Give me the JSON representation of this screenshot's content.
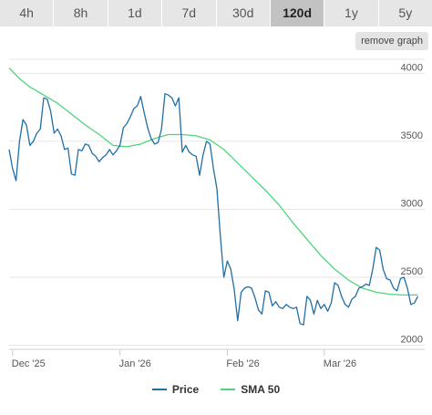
{
  "tabs": [
    {
      "label": "4h",
      "active": false
    },
    {
      "label": "8h",
      "active": false
    },
    {
      "label": "1d",
      "active": false
    },
    {
      "label": "7d",
      "active": false
    },
    {
      "label": "30d",
      "active": false
    },
    {
      "label": "120d",
      "active": true
    },
    {
      "label": "1y",
      "active": false
    },
    {
      "label": "5y",
      "active": false
    }
  ],
  "remove_graph_label": "remove graph",
  "legend": [
    {
      "name": "Price",
      "color": "#1f6fa6"
    },
    {
      "name": "SMA 50",
      "color": "#4cd67a"
    }
  ],
  "chart_data": {
    "type": "line",
    "x_tick_labels": [
      "Dec '25",
      "Jan '26",
      "Feb '26",
      "Mar '26"
    ],
    "x_tick_positions": [
      1,
      32,
      63,
      91
    ],
    "y_ticks": [
      2000,
      2500,
      3000,
      3500,
      4000
    ],
    "ylim": [
      1950,
      4150
    ],
    "xlim": [
      0,
      120
    ],
    "grid": "horizontal",
    "legend_position": "bottom-center",
    "series": [
      {
        "name": "Price",
        "color": "#1f6fa6",
        "points": [
          [
            0,
            3440
          ],
          [
            1,
            3300
          ],
          [
            2,
            3210
          ],
          [
            3,
            3500
          ],
          [
            4,
            3660
          ],
          [
            5,
            3620
          ],
          [
            6,
            3470
          ],
          [
            7,
            3500
          ],
          [
            8,
            3560
          ],
          [
            9,
            3590
          ],
          [
            10,
            3820
          ],
          [
            11,
            3810
          ],
          [
            12,
            3720
          ],
          [
            13,
            3560
          ],
          [
            14,
            3590
          ],
          [
            15,
            3540
          ],
          [
            16,
            3440
          ],
          [
            17,
            3450
          ],
          [
            18,
            3260
          ],
          [
            19,
            3250
          ],
          [
            20,
            3440
          ],
          [
            21,
            3430
          ],
          [
            22,
            3480
          ],
          [
            23,
            3470
          ],
          [
            24,
            3410
          ],
          [
            25,
            3390
          ],
          [
            26,
            3350
          ],
          [
            27,
            3380
          ],
          [
            28,
            3400
          ],
          [
            29,
            3440
          ],
          [
            30,
            3400
          ],
          [
            31,
            3430
          ],
          [
            32,
            3470
          ],
          [
            33,
            3600
          ],
          [
            34,
            3630
          ],
          [
            35,
            3680
          ],
          [
            36,
            3740
          ],
          [
            37,
            3760
          ],
          [
            38,
            3830
          ],
          [
            39,
            3710
          ],
          [
            40,
            3600
          ],
          [
            41,
            3520
          ],
          [
            42,
            3480
          ],
          [
            43,
            3490
          ],
          [
            44,
            3590
          ],
          [
            45,
            3850
          ],
          [
            46,
            3840
          ],
          [
            47,
            3820
          ],
          [
            48,
            3760
          ],
          [
            49,
            3820
          ],
          [
            50,
            3420
          ],
          [
            51,
            3470
          ],
          [
            52,
            3420
          ],
          [
            53,
            3400
          ],
          [
            54,
            3390
          ],
          [
            55,
            3250
          ],
          [
            56,
            3400
          ],
          [
            57,
            3500
          ],
          [
            58,
            3480
          ],
          [
            59,
            3300
          ],
          [
            60,
            3150
          ],
          [
            61,
            2800
          ],
          [
            62,
            2500
          ],
          [
            63,
            2620
          ],
          [
            64,
            2560
          ],
          [
            65,
            2410
          ],
          [
            66,
            2180
          ],
          [
            67,
            2390
          ],
          [
            68,
            2420
          ],
          [
            69,
            2430
          ],
          [
            70,
            2420
          ],
          [
            71,
            2350
          ],
          [
            72,
            2260
          ],
          [
            73,
            2230
          ],
          [
            74,
            2400
          ],
          [
            75,
            2390
          ],
          [
            76,
            2290
          ],
          [
            77,
            2320
          ],
          [
            78,
            2280
          ],
          [
            79,
            2270
          ],
          [
            80,
            2300
          ],
          [
            81,
            2280
          ],
          [
            82,
            2270
          ],
          [
            83,
            2280
          ],
          [
            84,
            2160
          ],
          [
            85,
            2150
          ],
          [
            86,
            2360
          ],
          [
            87,
            2330
          ],
          [
            88,
            2230
          ],
          [
            89,
            2330
          ],
          [
            90,
            2270
          ],
          [
            91,
            2300
          ],
          [
            92,
            2250
          ],
          [
            93,
            2310
          ],
          [
            94,
            2460
          ],
          [
            95,
            2440
          ],
          [
            96,
            2360
          ],
          [
            97,
            2300
          ],
          [
            98,
            2280
          ],
          [
            99,
            2340
          ],
          [
            100,
            2360
          ],
          [
            101,
            2420
          ],
          [
            102,
            2430
          ],
          [
            103,
            2450
          ],
          [
            104,
            2440
          ],
          [
            105,
            2560
          ],
          [
            106,
            2720
          ],
          [
            107,
            2700
          ],
          [
            108,
            2560
          ],
          [
            109,
            2490
          ],
          [
            110,
            2480
          ],
          [
            111,
            2420
          ],
          [
            112,
            2400
          ],
          [
            113,
            2490
          ],
          [
            114,
            2500
          ],
          [
            115,
            2420
          ],
          [
            116,
            2300
          ],
          [
            117,
            2310
          ],
          [
            118,
            2360
          ]
        ]
      },
      {
        "name": "SMA 50",
        "color": "#4cd67a",
        "points": [
          [
            0,
            4040
          ],
          [
            3,
            3960
          ],
          [
            6,
            3900
          ],
          [
            10,
            3840
          ],
          [
            14,
            3780
          ],
          [
            18,
            3700
          ],
          [
            22,
            3620
          ],
          [
            26,
            3550
          ],
          [
            30,
            3470
          ],
          [
            34,
            3460
          ],
          [
            38,
            3480
          ],
          [
            42,
            3520
          ],
          [
            46,
            3550
          ],
          [
            50,
            3550
          ],
          [
            54,
            3540
          ],
          [
            58,
            3510
          ],
          [
            62,
            3440
          ],
          [
            66,
            3340
          ],
          [
            70,
            3240
          ],
          [
            74,
            3140
          ],
          [
            78,
            3030
          ],
          [
            82,
            2900
          ],
          [
            86,
            2780
          ],
          [
            90,
            2660
          ],
          [
            94,
            2560
          ],
          [
            98,
            2480
          ],
          [
            102,
            2420
          ],
          [
            106,
            2390
          ],
          [
            110,
            2375
          ],
          [
            114,
            2370
          ],
          [
            118,
            2370
          ]
        ]
      }
    ]
  }
}
